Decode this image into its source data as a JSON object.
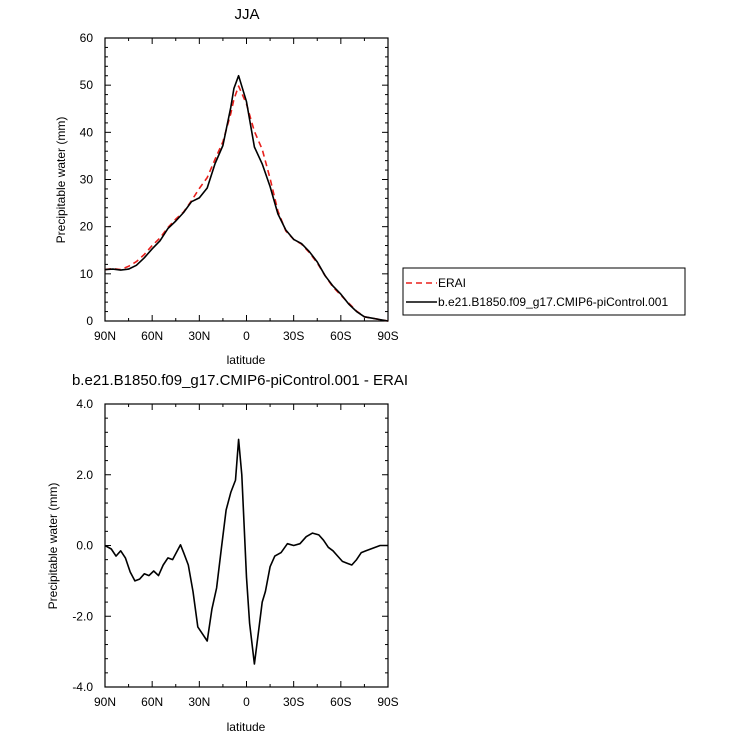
{
  "chart_data": [
    {
      "type": "line",
      "title": "JJA",
      "xlabel": "latitude",
      "ylabel": "Precipitable water (mm)",
      "xlim": [
        -90,
        90
      ],
      "ylim": [
        0,
        60
      ],
      "xticks": [
        "90N",
        "60N",
        "30N",
        "0",
        "30S",
        "60S",
        "90S"
      ],
      "yticks": [
        "0",
        "10",
        "20",
        "30",
        "40",
        "50",
        "60"
      ],
      "x": [
        -90,
        -85,
        -80,
        -75,
        -70,
        -65,
        -60,
        -55,
        -50,
        -45,
        -40,
        -35,
        -30,
        -25,
        -20,
        -15,
        -10,
        -8,
        -5,
        0,
        5,
        10,
        15,
        20,
        25,
        30,
        35,
        40,
        45,
        50,
        55,
        60,
        65,
        70,
        75,
        80,
        85,
        90
      ],
      "legend_position": "right",
      "series": [
        {
          "name": "ERAI",
          "color": "#e8201c",
          "dash": "dashed",
          "values": [
            10.9,
            11.1,
            10.9,
            11.6,
            12.6,
            14.1,
            16.0,
            17.6,
            19.8,
            21.6,
            23.1,
            25.5,
            28.1,
            30.4,
            34.3,
            38.0,
            44.0,
            47.0,
            49.8,
            46.0,
            40.2,
            36.4,
            30.2,
            23.3,
            19.1,
            17.3,
            16.3,
            14.5,
            12.3,
            9.6,
            7.2,
            5.5,
            3.8,
            2.1,
            0.9,
            0.6,
            0.3,
            0.0
          ]
        },
        {
          "name": "b.e21.B1850.f09_g17.CMIP6-piControl.001",
          "color": "#000000",
          "dash": "solid",
          "values": [
            10.9,
            11.0,
            10.8,
            11.0,
            11.8,
            13.4,
            15.3,
            17.0,
            19.6,
            21.2,
            23.0,
            25.3,
            26.1,
            28.2,
            33.4,
            37.2,
            45.3,
            49.3,
            52.0,
            46.5,
            36.9,
            33.3,
            28.5,
            22.7,
            19.3,
            17.3,
            16.4,
            14.7,
            12.5,
            9.6,
            7.4,
            5.7,
            3.6,
            2.0,
            0.9,
            0.6,
            0.3,
            0.0
          ]
        }
      ]
    },
    {
      "type": "line",
      "title": "b.e21.B1850.f09_g17.CMIP6-piControl.001 - ERAI",
      "xlabel": "latitude",
      "ylabel": "Precipitable water (mm)",
      "xlim": [
        -90,
        90
      ],
      "ylim": [
        -4.0,
        4.0
      ],
      "xticks": [
        "90N",
        "60N",
        "30N",
        "0",
        "30S",
        "60S",
        "90S"
      ],
      "yticks": [
        "-4.0",
        "-2.0",
        "0.0",
        "2.0",
        "4.0"
      ],
      "series": [
        {
          "color": "#000000",
          "x": [
            -90,
            -86,
            -83,
            -80,
            -77,
            -74,
            -71,
            -68,
            -65,
            -62,
            -59,
            -56,
            -53,
            -50,
            -47,
            -44,
            -42,
            -40,
            -37,
            -34,
            -31,
            -28,
            -25,
            -22,
            -19,
            -16,
            -13,
            -10,
            -7,
            -5,
            -3,
            0,
            2,
            5,
            8,
            10,
            12,
            15,
            18,
            22,
            26,
            30,
            34,
            38,
            42,
            46,
            49,
            52,
            55,
            58,
            61,
            64,
            67,
            70,
            73,
            76,
            79,
            82,
            85,
            90
          ],
          "values": [
            0.0,
            -0.1,
            -0.3,
            -0.15,
            -0.35,
            -0.75,
            -1.0,
            -0.95,
            -0.8,
            -0.85,
            -0.72,
            -0.85,
            -0.55,
            -0.35,
            -0.4,
            -0.15,
            0.02,
            -0.2,
            -0.55,
            -1.3,
            -2.3,
            -2.5,
            -2.7,
            -1.8,
            -1.2,
            -0.1,
            1.0,
            1.5,
            1.85,
            3.0,
            2.0,
            -0.9,
            -2.2,
            -3.35,
            -2.3,
            -1.6,
            -1.3,
            -0.6,
            -0.3,
            -0.2,
            0.05,
            0.0,
            0.05,
            0.25,
            0.35,
            0.3,
            0.15,
            -0.05,
            -0.15,
            -0.3,
            -0.45,
            -0.5,
            -0.55,
            -0.4,
            -0.2,
            -0.15,
            -0.1,
            -0.05,
            0.0,
            0.0
          ]
        }
      ]
    }
  ]
}
